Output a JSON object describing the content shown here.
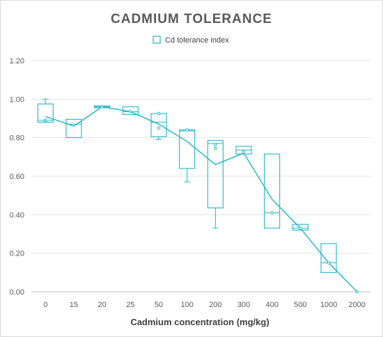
{
  "chart_data": {
    "type": "box",
    "title": "CADMIUM TOLERANCE",
    "xlabel": "Cadmium concentration (mg/kg)",
    "ylabel": "",
    "ylim": [
      0,
      1.2
    ],
    "yticks": [
      "0.00",
      "0.20",
      "0.40",
      "0.60",
      "0.80",
      "1.00",
      "1.20"
    ],
    "grid": true,
    "legend_position": "top",
    "categories": [
      "0",
      "15",
      "20",
      "25",
      "50",
      "100",
      "200",
      "300",
      "400",
      "500",
      "1000",
      "2000"
    ],
    "series": [
      {
        "name": "Cd tolerance index",
        "color": "#1fb5c9",
        "boxes": [
          {
            "whisker_low": 0.88,
            "q1": 0.88,
            "median": 0.89,
            "q3": 0.975,
            "whisker_high": 1.0,
            "mean": 0.91,
            "points": [
              0.885,
              0.89
            ]
          },
          {
            "whisker_low": 0.8,
            "q1": 0.8,
            "median": 0.87,
            "q3": 0.895,
            "whisker_high": 0.895,
            "mean": 0.86,
            "points": []
          },
          {
            "whisker_low": 0.955,
            "q1": 0.955,
            "median": 0.96,
            "q3": 0.965,
            "whisker_high": 0.965,
            "mean": 0.96,
            "points": [
              0.96
            ]
          },
          {
            "whisker_low": 0.92,
            "q1": 0.92,
            "median": 0.935,
            "q3": 0.96,
            "whisker_high": 0.96,
            "mean": 0.935,
            "points": [
              0.935
            ]
          },
          {
            "whisker_low": 0.79,
            "q1": 0.805,
            "median": 0.88,
            "q3": 0.925,
            "whisker_high": 0.925,
            "mean": 0.87,
            "points": [
              0.925,
              0.85
            ]
          },
          {
            "whisker_low": 0.57,
            "q1": 0.64,
            "median": 0.835,
            "q3": 0.84,
            "whisker_high": 0.84,
            "mean": 0.78,
            "points": [
              0.84
            ]
          },
          {
            "whisker_low": 0.33,
            "q1": 0.435,
            "median": 0.77,
            "q3": 0.785,
            "whisker_high": 0.785,
            "mean": 0.66,
            "points": [
              0.765,
              0.745
            ]
          },
          {
            "whisker_low": 0.715,
            "q1": 0.715,
            "median": 0.735,
            "q3": 0.755,
            "whisker_high": 0.755,
            "mean": 0.72,
            "points": [
              0.725
            ]
          },
          {
            "whisker_low": 0.33,
            "q1": 0.33,
            "median": 0.41,
            "q3": 0.715,
            "whisker_high": 0.715,
            "mean": 0.48,
            "points": [
              0.41
            ]
          },
          {
            "whisker_low": 0.32,
            "q1": 0.32,
            "median": 0.33,
            "q3": 0.35,
            "whisker_high": 0.35,
            "mean": 0.33,
            "points": [
              0.33
            ]
          },
          {
            "whisker_low": 0.1,
            "q1": 0.1,
            "median": 0.15,
            "q3": 0.25,
            "whisker_high": 0.25,
            "mean": 0.15,
            "points": [
              0.15
            ]
          },
          {
            "whisker_low": 0.0,
            "q1": 0.0,
            "median": 0.0,
            "q3": 0.0,
            "whisker_high": 0.0,
            "mean": 0.0,
            "points": [
              0.0
            ]
          }
        ]
      }
    ]
  }
}
